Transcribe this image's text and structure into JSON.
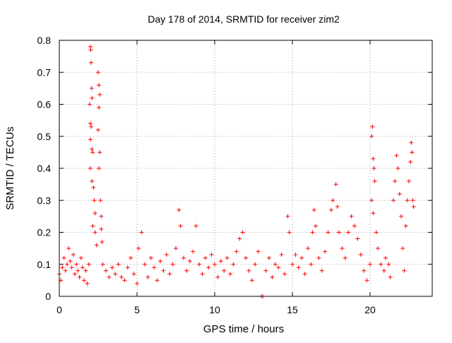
{
  "chart_data": {
    "type": "scatter",
    "title": "Day 178 of 2014, SRMTID for receiver zim2",
    "xlabel": "GPS time / hours",
    "ylabel": "SRMTID / TECUs",
    "xlim": [
      0,
      24
    ],
    "ylim": [
      0,
      0.8
    ],
    "xticks": [
      "0",
      "5",
      "10",
      "15",
      "20"
    ],
    "yticks": [
      "0",
      "0.1",
      "0.2",
      "0.3",
      "0.4",
      "0.5",
      "0.6",
      "0.7",
      "0.8"
    ],
    "grid": true,
    "marker": "+",
    "color": "#ff0000",
    "series": [
      {
        "name": "SRMTID",
        "points": [
          [
            0.0,
            0.07
          ],
          [
            0.1,
            0.05
          ],
          [
            0.2,
            0.09
          ],
          [
            0.3,
            0.12
          ],
          [
            0.4,
            0.08
          ],
          [
            0.5,
            0.1
          ],
          [
            0.6,
            0.15
          ],
          [
            0.7,
            0.11
          ],
          [
            0.8,
            0.09
          ],
          [
            0.9,
            0.13
          ],
          [
            1.0,
            0.07
          ],
          [
            1.1,
            0.1
          ],
          [
            1.2,
            0.08
          ],
          [
            1.3,
            0.06
          ],
          [
            1.4,
            0.12
          ],
          [
            1.5,
            0.09
          ],
          [
            1.6,
            0.05
          ],
          [
            1.7,
            0.08
          ],
          [
            1.8,
            0.04
          ],
          [
            1.9,
            0.1
          ],
          [
            2.0,
            0.78
          ],
          [
            2.02,
            0.77
          ],
          [
            2.05,
            0.73
          ],
          [
            2.08,
            0.65
          ],
          [
            1.95,
            0.6
          ],
          [
            2.1,
            0.62
          ],
          [
            2.0,
            0.54
          ],
          [
            2.05,
            0.53
          ],
          [
            2.0,
            0.49
          ],
          [
            2.1,
            0.46
          ],
          [
            2.15,
            0.45
          ],
          [
            2.0,
            0.4
          ],
          [
            2.1,
            0.36
          ],
          [
            2.2,
            0.34
          ],
          [
            2.25,
            0.3
          ],
          [
            2.3,
            0.26
          ],
          [
            2.15,
            0.22
          ],
          [
            2.3,
            0.2
          ],
          [
            2.4,
            0.16
          ],
          [
            2.5,
            0.7
          ],
          [
            2.55,
            0.66
          ],
          [
            2.6,
            0.63
          ],
          [
            2.55,
            0.59
          ],
          [
            2.5,
            0.52
          ],
          [
            2.6,
            0.45
          ],
          [
            2.55,
            0.4
          ],
          [
            2.65,
            0.3
          ],
          [
            2.7,
            0.25
          ],
          [
            2.7,
            0.21
          ],
          [
            2.75,
            0.17
          ],
          [
            2.8,
            0.1
          ],
          [
            3.0,
            0.08
          ],
          [
            3.2,
            0.06
          ],
          [
            3.4,
            0.09
          ],
          [
            3.6,
            0.07
          ],
          [
            3.8,
            0.1
          ],
          [
            4.0,
            0.06
          ],
          [
            4.2,
            0.05
          ],
          [
            4.4,
            0.09
          ],
          [
            4.6,
            0.12
          ],
          [
            4.8,
            0.07
          ],
          [
            5.0,
            0.04
          ],
          [
            5.1,
            0.15
          ],
          [
            5.3,
            0.2
          ],
          [
            5.5,
            0.1
          ],
          [
            5.7,
            0.06
          ],
          [
            5.9,
            0.12
          ],
          [
            6.1,
            0.09
          ],
          [
            6.3,
            0.05
          ],
          [
            6.5,
            0.11
          ],
          [
            6.7,
            0.08
          ],
          [
            6.9,
            0.13
          ],
          [
            7.1,
            0.07
          ],
          [
            7.3,
            0.1
          ],
          [
            7.5,
            0.15
          ],
          [
            7.7,
            0.27
          ],
          [
            7.8,
            0.22
          ],
          [
            8.0,
            0.12
          ],
          [
            8.2,
            0.08
          ],
          [
            8.4,
            0.11
          ],
          [
            8.6,
            0.14
          ],
          [
            8.8,
            0.22
          ],
          [
            9.0,
            0.1
          ],
          [
            9.2,
            0.07
          ],
          [
            9.4,
            0.12
          ],
          [
            9.6,
            0.09
          ],
          [
            9.8,
            0.13
          ],
          [
            10.0,
            0.1
          ],
          [
            10.2,
            0.06
          ],
          [
            10.4,
            0.11
          ],
          [
            10.6,
            0.08
          ],
          [
            10.8,
            0.12
          ],
          [
            11.0,
            0.07
          ],
          [
            11.2,
            0.1
          ],
          [
            11.4,
            0.14
          ],
          [
            11.6,
            0.18
          ],
          [
            11.8,
            0.2
          ],
          [
            12.0,
            0.12
          ],
          [
            12.2,
            0.08
          ],
          [
            12.4,
            0.05
          ],
          [
            12.6,
            0.1
          ],
          [
            12.8,
            0.14
          ],
          [
            13.0,
            0.0
          ],
          [
            13.1,
            0.0
          ],
          [
            13.3,
            0.08
          ],
          [
            13.5,
            0.12
          ],
          [
            13.7,
            0.06
          ],
          [
            13.9,
            0.1
          ],
          [
            14.1,
            0.09
          ],
          [
            14.3,
            0.13
          ],
          [
            14.5,
            0.07
          ],
          [
            14.7,
            0.25
          ],
          [
            14.8,
            0.2
          ],
          [
            15.0,
            0.1
          ],
          [
            15.2,
            0.13
          ],
          [
            15.4,
            0.09
          ],
          [
            15.6,
            0.12
          ],
          [
            15.8,
            0.07
          ],
          [
            16.0,
            0.15
          ],
          [
            16.2,
            0.1
          ],
          [
            16.3,
            0.2
          ],
          [
            16.4,
            0.27
          ],
          [
            16.5,
            0.22
          ],
          [
            16.7,
            0.12
          ],
          [
            16.9,
            0.08
          ],
          [
            17.1,
            0.14
          ],
          [
            17.3,
            0.2
          ],
          [
            17.5,
            0.27
          ],
          [
            17.6,
            0.3
          ],
          [
            17.8,
            0.35
          ],
          [
            17.9,
            0.28
          ],
          [
            18.0,
            0.2
          ],
          [
            18.2,
            0.15
          ],
          [
            18.4,
            0.12
          ],
          [
            18.6,
            0.2
          ],
          [
            18.8,
            0.25
          ],
          [
            19.0,
            0.22
          ],
          [
            19.2,
            0.18
          ],
          [
            19.4,
            0.13
          ],
          [
            19.6,
            0.08
          ],
          [
            19.8,
            0.05
          ],
          [
            20.0,
            0.1
          ],
          [
            20.1,
            0.5
          ],
          [
            20.15,
            0.53
          ],
          [
            20.2,
            0.43
          ],
          [
            20.25,
            0.4
          ],
          [
            20.3,
            0.36
          ],
          [
            20.1,
            0.3
          ],
          [
            20.2,
            0.26
          ],
          [
            20.4,
            0.2
          ],
          [
            20.5,
            0.15
          ],
          [
            20.7,
            0.1
          ],
          [
            20.9,
            0.08
          ],
          [
            21.0,
            0.12
          ],
          [
            21.2,
            0.1
          ],
          [
            21.3,
            0.06
          ],
          [
            21.5,
            0.3
          ],
          [
            21.6,
            0.36
          ],
          [
            21.7,
            0.44
          ],
          [
            21.8,
            0.4
          ],
          [
            21.9,
            0.32
          ],
          [
            22.0,
            0.25
          ],
          [
            22.1,
            0.15
          ],
          [
            22.2,
            0.08
          ],
          [
            22.3,
            0.22
          ],
          [
            22.4,
            0.3
          ],
          [
            22.5,
            0.36
          ],
          [
            22.6,
            0.42
          ],
          [
            22.65,
            0.48
          ],
          [
            22.7,
            0.45
          ],
          [
            22.75,
            0.3
          ],
          [
            22.8,
            0.28
          ]
        ]
      }
    ]
  }
}
